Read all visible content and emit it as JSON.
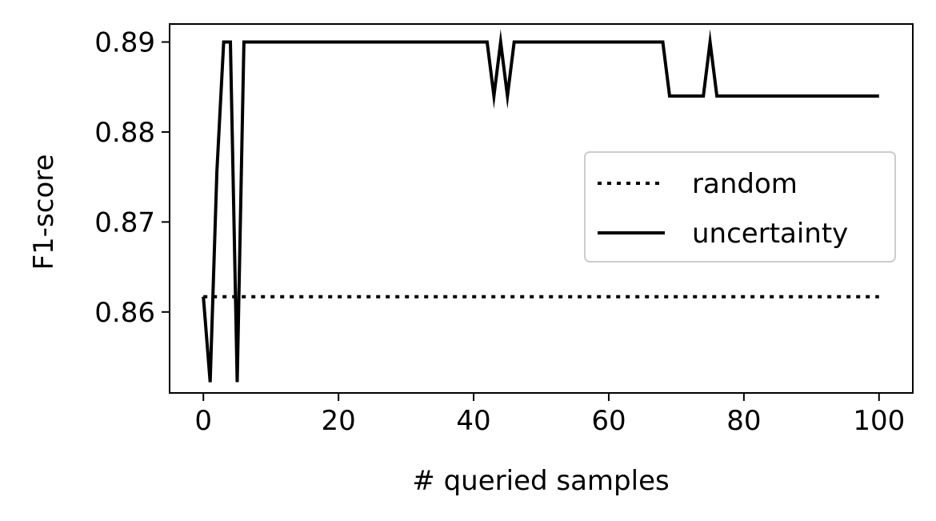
{
  "chart_data": {
    "type": "line",
    "xlabel": "# queried samples",
    "ylabel": "F1-score",
    "xlim": [
      -5,
      105
    ],
    "ylim": [
      0.851,
      0.892
    ],
    "xticks": [
      0,
      20,
      40,
      60,
      80,
      100
    ],
    "xtick_labels": [
      "0",
      "20",
      "40",
      "60",
      "80",
      "100"
    ],
    "yticks": [
      0.86,
      0.87,
      0.88,
      0.89
    ],
    "ytick_labels": [
      "0.86",
      "0.87",
      "0.88",
      "0.89"
    ],
    "grid": false,
    "legend_position": "center-right",
    "series": [
      {
        "name": "random",
        "style": "dotted",
        "color": "#000000",
        "x": [
          0,
          100
        ],
        "y": [
          0.8617,
          0.8617
        ]
      },
      {
        "name": "uncertainty",
        "style": "solid",
        "color": "#000000",
        "x": [
          0,
          1,
          2,
          3,
          4,
          5,
          6,
          42,
          43,
          44,
          45,
          46,
          68,
          69,
          74,
          75,
          76,
          100
        ],
        "y": [
          0.8617,
          0.8522,
          0.8756,
          0.89,
          0.89,
          0.8522,
          0.89,
          0.89,
          0.884,
          0.89,
          0.884,
          0.89,
          0.89,
          0.884,
          0.884,
          0.89,
          0.884,
          0.884
        ]
      }
    ]
  }
}
